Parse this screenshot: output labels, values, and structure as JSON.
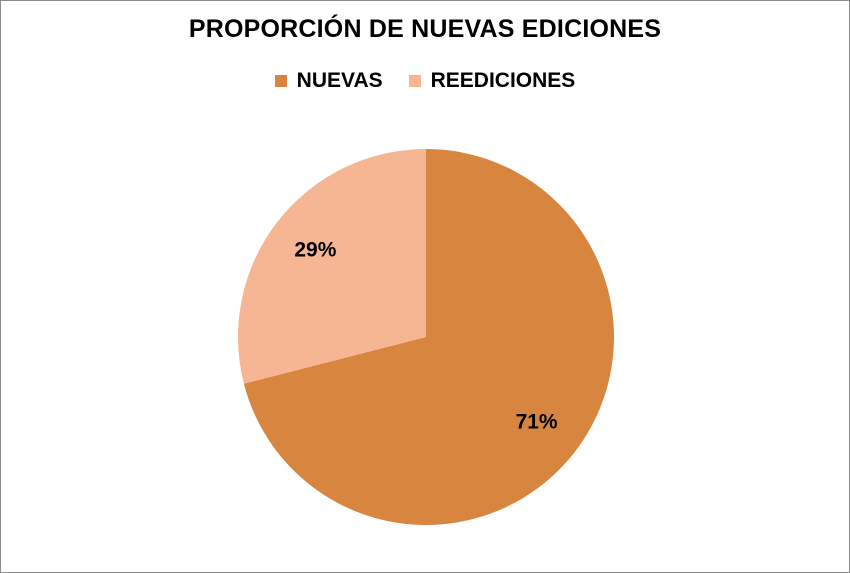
{
  "chart_data": {
    "type": "pie",
    "title": "PROPORCIÓN DE NUEVAS EDICIONES",
    "categories": [
      "NUEVAS",
      "REEDICIONES"
    ],
    "values": [
      71,
      29
    ],
    "data_labels": [
      "71%",
      "29%"
    ],
    "colors": [
      "#d8853f",
      "#f7b693"
    ],
    "legend_position": "top",
    "start": "top, clockwise"
  }
}
